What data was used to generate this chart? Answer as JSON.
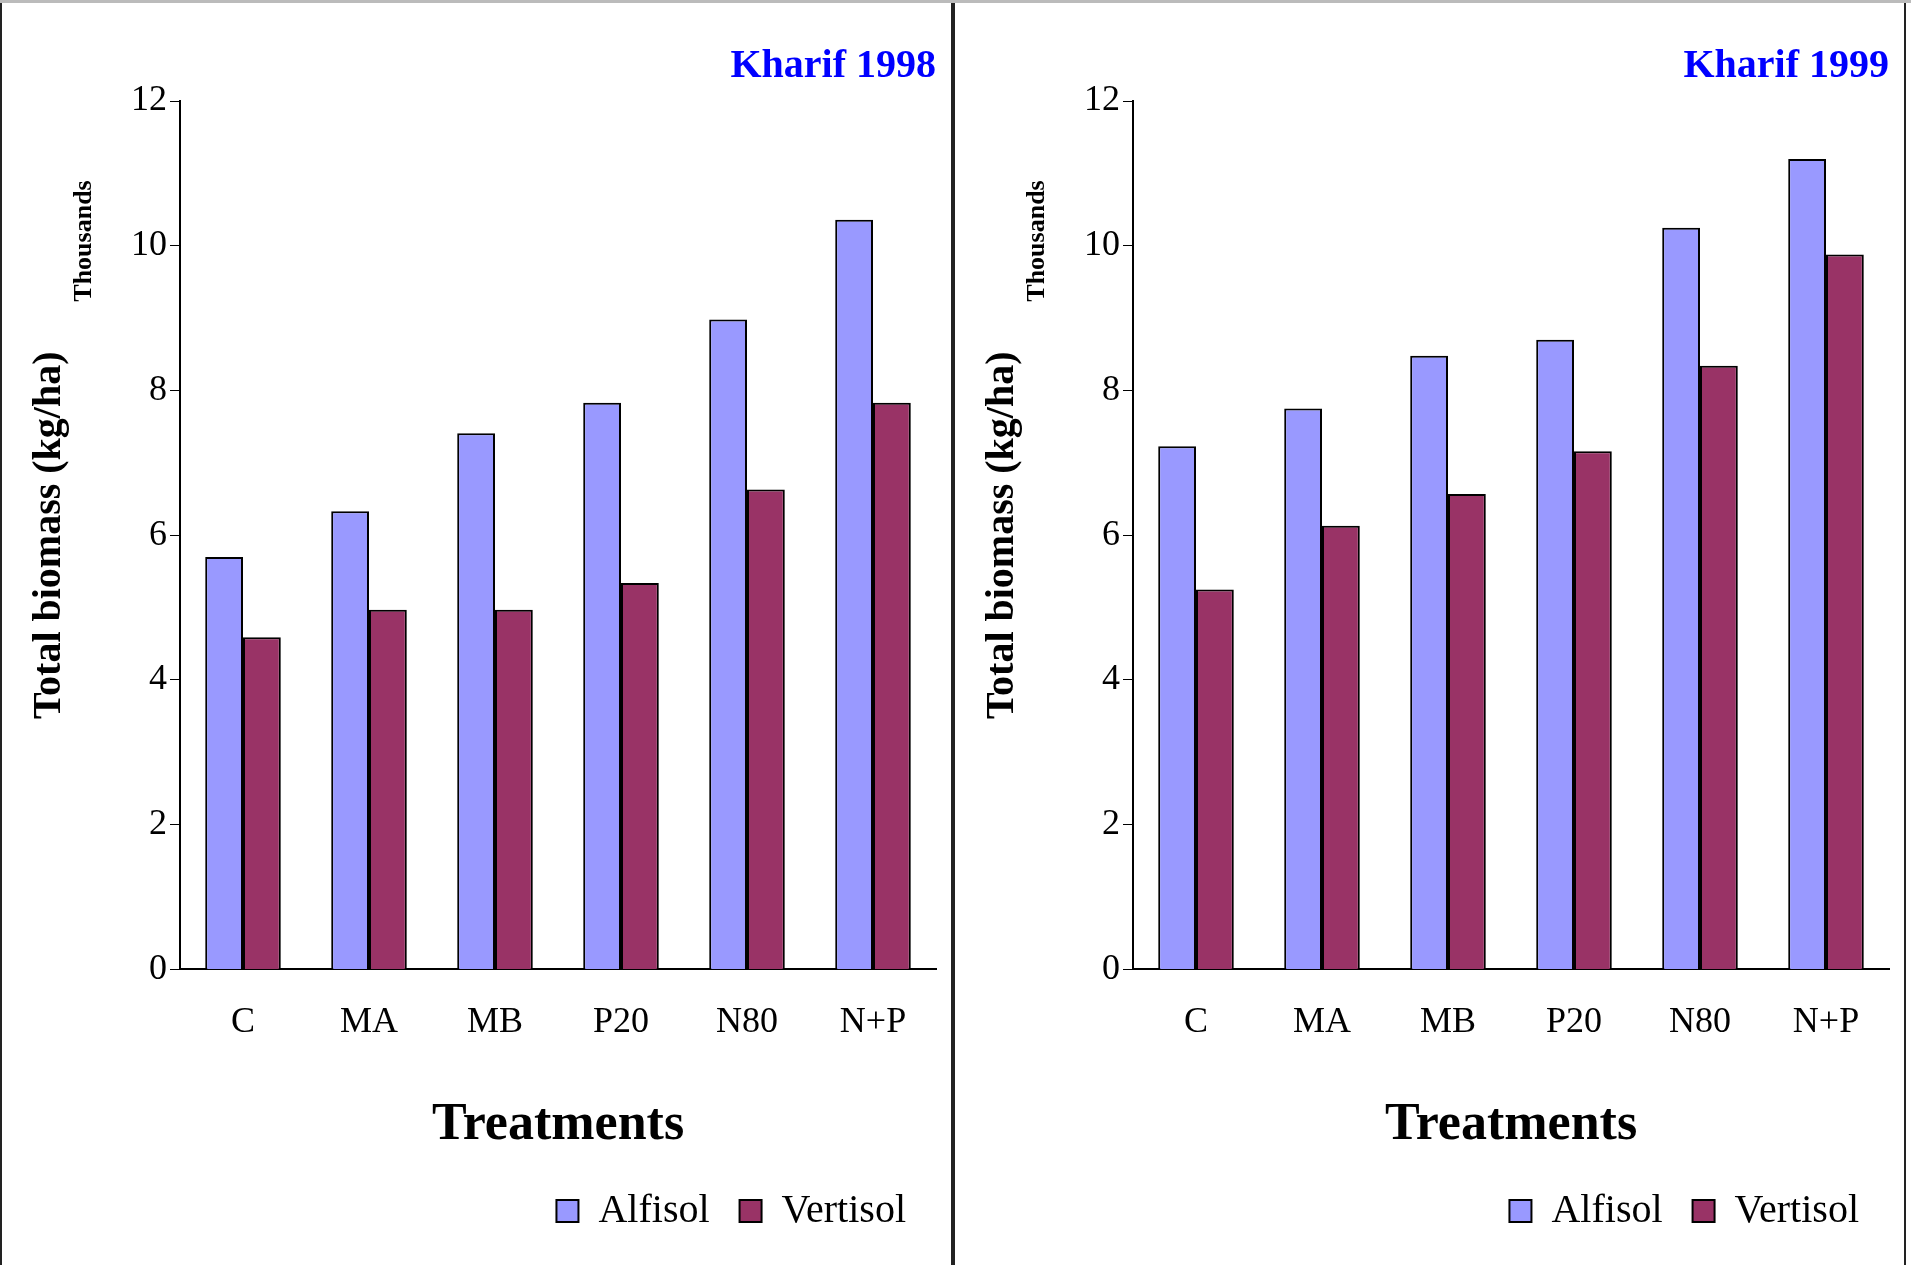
{
  "chart_data": [
    {
      "type": "bar",
      "title": "Kharif 1998",
      "xlabel": "Treatments",
      "ylabel": "Total biomass (kg/ha)",
      "annotations": [
        "Thousands"
      ],
      "categories": [
        "C",
        "MA",
        "MB",
        "P20",
        "N80",
        "N+P"
      ],
      "series": [
        {
          "name": "Alfisol",
          "color": "#9999ff",
          "values": [
            5.7,
            6.33,
            7.41,
            7.83,
            8.98,
            10.36
          ]
        },
        {
          "name": "Vertisol",
          "color": "#993366",
          "values": [
            4.59,
            4.97,
            4.97,
            5.34,
            6.63,
            7.83
          ]
        }
      ],
      "ylim": [
        0,
        12
      ],
      "yticks": [
        0,
        2,
        4,
        6,
        8,
        10,
        12
      ],
      "grid": false,
      "legend": "bottom right"
    },
    {
      "type": "bar",
      "title": "Kharif 1999",
      "xlabel": "Treatments",
      "ylabel": "Total biomass (kg/ha)",
      "annotations": [
        "Thousands"
      ],
      "categories": [
        "C",
        "MA",
        "MB",
        "P20",
        "N80",
        "N+P"
      ],
      "series": [
        {
          "name": "Alfisol",
          "color": "#9999ff",
          "values": [
            7.23,
            7.75,
            8.48,
            8.7,
            10.25,
            11.2
          ]
        },
        {
          "name": "Vertisol",
          "color": "#993366",
          "values": [
            5.25,
            6.13,
            6.57,
            7.16,
            8.34,
            9.88
          ]
        }
      ],
      "ylim": [
        0,
        12
      ],
      "yticks": [
        0,
        2,
        4,
        6,
        8,
        10,
        12
      ],
      "grid": false,
      "legend": "bottom right"
    }
  ]
}
